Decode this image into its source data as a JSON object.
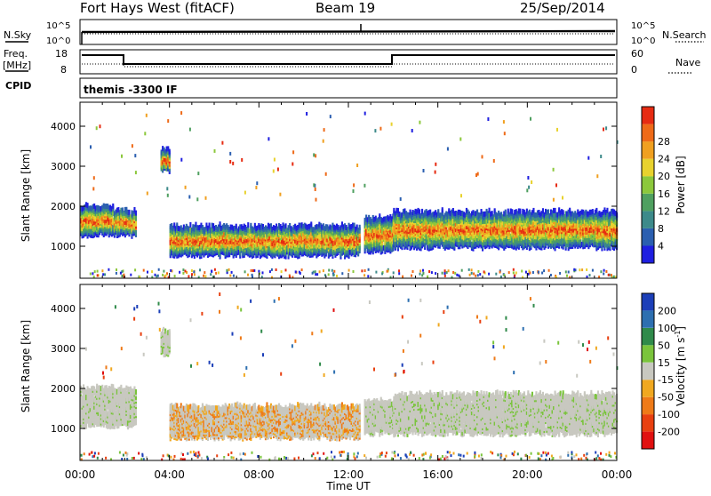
{
  "header": {
    "station": "Fort Hays West (fitACF)",
    "beam": "Beam 19",
    "date": "25/Sep/2014"
  },
  "top_panels": {
    "nsky_label": "N.Sky",
    "nsky_ticks": [
      "10^5",
      "10^0"
    ],
    "nsearch_label": "N.Search",
    "nsearch_ticks": [
      "10^5",
      "10^0"
    ],
    "freq_label": "Freq.",
    "freq_unit": "[MHz]",
    "freq_ticks": [
      "18",
      "8"
    ],
    "nave_label": "Nave",
    "nave_ticks": [
      "60",
      "0"
    ],
    "cpid_label": "CPID",
    "cpid_text": "themis -3300 IF"
  },
  "chart_data": [
    {
      "type": "heatmap",
      "title": "",
      "ylabel": "Slant Range [km]",
      "xlabel": "",
      "x_ticks": [
        "00:00",
        "04:00",
        "08:00",
        "12:00",
        "16:00",
        "20:00",
        "00:00"
      ],
      "y_ticks": [
        "1000",
        "2000",
        "3000",
        "4000"
      ],
      "ylim": [
        200,
        4600
      ],
      "xlim_hours": [
        0,
        24
      ],
      "colorbar": {
        "label": "Power [dB]",
        "ticks": [
          "4",
          "8",
          "12",
          "16",
          "20",
          "24",
          "28"
        ],
        "colors": [
          "#1f1fe0",
          "#2b5fb0",
          "#3d8a8a",
          "#4fa060",
          "#8cc83c",
          "#e8d22e",
          "#f0a020",
          "#ee6a18",
          "#e62b12"
        ]
      },
      "bands": [
        {
          "t0": 0.0,
          "t1": 1.5,
          "low": 1300,
          "high": 2000
        },
        {
          "t0": 1.5,
          "t1": 2.5,
          "low": 1300,
          "high": 1900
        },
        {
          "t0": 3.6,
          "t1": 4.0,
          "low": 2900,
          "high": 3400
        },
        {
          "t0": 4.0,
          "t1": 12.5,
          "low": 800,
          "high": 1500
        },
        {
          "t0": 12.7,
          "t1": 14.0,
          "low": 900,
          "high": 1700
        },
        {
          "t0": 14.0,
          "t1": 24.0,
          "low": 1000,
          "high": 1850
        }
      ]
    },
    {
      "type": "heatmap",
      "title": "",
      "ylabel": "Slant Range [km]",
      "xlabel": "Time UT",
      "x_ticks": [
        "00:00",
        "04:00",
        "08:00",
        "12:00",
        "16:00",
        "20:00",
        "00:00"
      ],
      "y_ticks": [
        "1000",
        "2000",
        "3000",
        "4000"
      ],
      "ylim": [
        200,
        4600
      ],
      "xlim_hours": [
        0,
        24
      ],
      "colorbar": {
        "label": "Velocity [m s",
        "label_sup": "-1",
        "label_end": "]",
        "ticks": [
          "200",
          "100",
          "50",
          "15",
          "-15",
          "-50",
          "-100",
          "-200"
        ],
        "colors": [
          "#1c3fb8",
          "#2d6fb0",
          "#2f8a4a",
          "#7ac43c",
          "#c8c8c0",
          "#f0a820",
          "#ee7a18",
          "#e84010",
          "#e01010"
        ]
      },
      "bands": [
        {
          "t0": 0.0,
          "t1": 2.5,
          "low": 1100,
          "high": 2000
        },
        {
          "t0": 3.6,
          "t1": 4.0,
          "low": 2900,
          "high": 3400
        },
        {
          "t0": 4.0,
          "t1": 12.5,
          "low": 800,
          "high": 1550
        },
        {
          "t0": 12.7,
          "t1": 14.0,
          "low": 900,
          "high": 1700
        },
        {
          "t0": 14.0,
          "t1": 24.0,
          "low": 900,
          "high": 1850
        }
      ]
    }
  ]
}
